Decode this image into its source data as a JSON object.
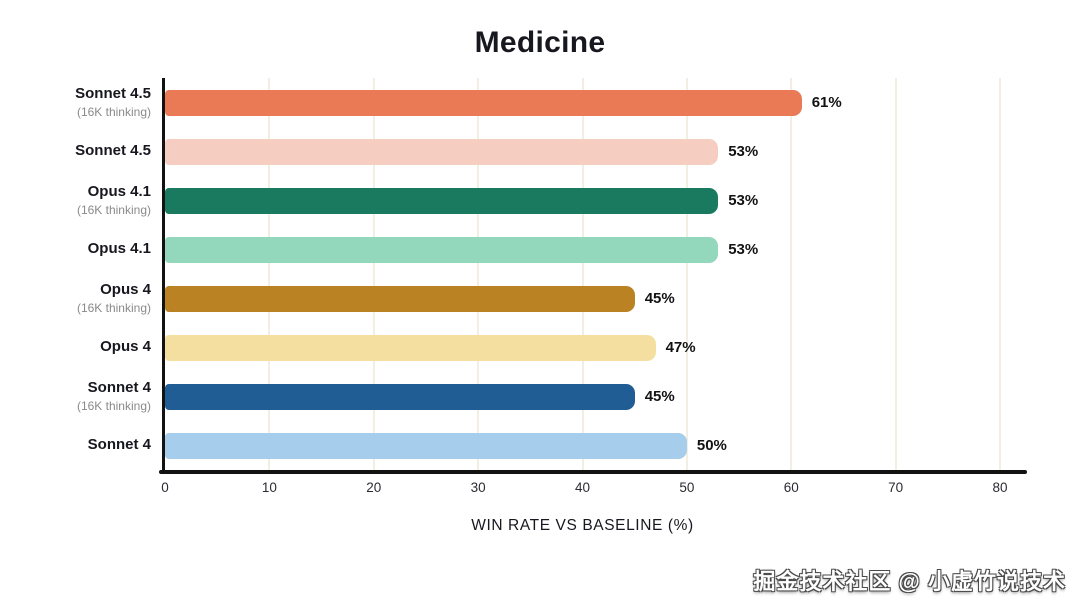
{
  "chart_data": {
    "type": "bar",
    "orientation": "horizontal",
    "title": "Medicine",
    "xlabel": "WIN RATE VS BASELINE (%)",
    "xlim": [
      0,
      80
    ],
    "xticks": [
      0,
      10,
      20,
      30,
      40,
      50,
      60,
      70,
      80
    ],
    "grid": "vertical-light",
    "legend": "none",
    "categories": [
      {
        "label": "Sonnet 4.5",
        "sublabel": "(16K thinking)"
      },
      {
        "label": "Sonnet 4.5",
        "sublabel": ""
      },
      {
        "label": "Opus 4.1",
        "sublabel": "(16K thinking)"
      },
      {
        "label": "Opus 4.1",
        "sublabel": ""
      },
      {
        "label": "Opus 4",
        "sublabel": "(16K thinking)"
      },
      {
        "label": "Opus 4",
        "sublabel": ""
      },
      {
        "label": "Sonnet 4",
        "sublabel": "(16K thinking)"
      },
      {
        "label": "Sonnet 4",
        "sublabel": ""
      }
    ],
    "values": [
      61,
      53,
      53,
      53,
      45,
      47,
      45,
      50
    ],
    "value_labels": [
      "61%",
      "53%",
      "53%",
      "53%",
      "45%",
      "47%",
      "45%",
      "50%"
    ],
    "bar_colors": [
      "#E97A55",
      "#F6CDC1",
      "#1A7A60",
      "#93D7BD",
      "#BA8222",
      "#F5DFA0",
      "#1F5D94",
      "#A6CDEB"
    ],
    "axis_color": "#121212",
    "gridline_color": "#F3EEE2",
    "label_color": "#17171F",
    "sublabel_color": "#8A8A8A"
  },
  "watermark": {
    "text": "掘金技术社区 @ 小虚竹说技术"
  }
}
